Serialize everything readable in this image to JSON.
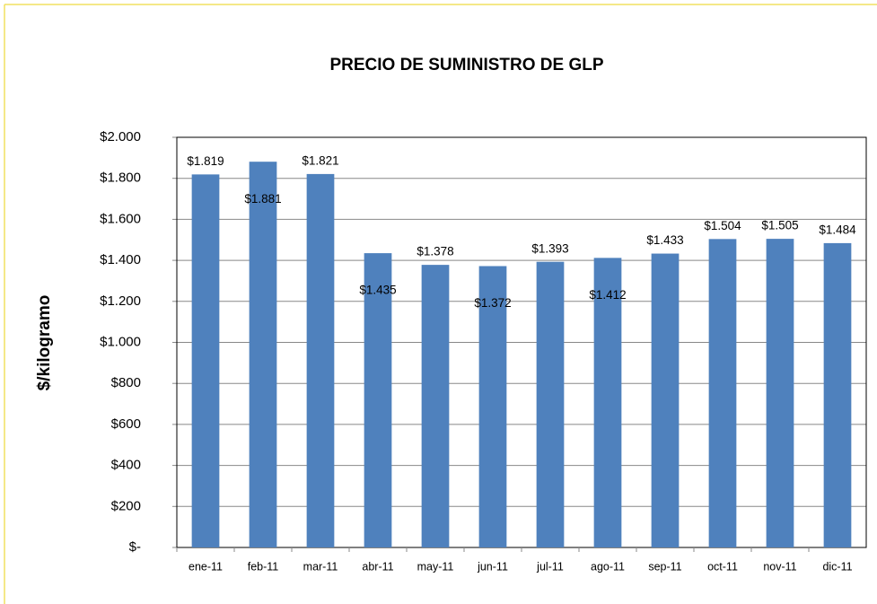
{
  "chart_data": {
    "type": "bar",
    "title": "PRECIO DE SUMINISTRO DE GLP",
    "y_label": "$/kilogramo",
    "categories": [
      "ene-11",
      "feb-11",
      "mar-11",
      "abr-11",
      "may-11",
      "jun-11",
      "jul-11",
      "ago-11",
      "sep-11",
      "oct-11",
      "nov-11",
      "dic-11"
    ],
    "values": [
      1819,
      1881,
      1821,
      1435,
      1378,
      1372,
      1393,
      1412,
      1433,
      1504,
      1505,
      1484
    ],
    "value_labels": [
      "$1.819",
      "$1.881",
      "$1.821",
      "$1.435",
      "$1.378",
      "$1.372",
      "$1.393",
      "$1.412",
      "$1.433",
      "$1.504",
      "$1.505",
      "$1.484"
    ],
    "color": "#4f81bd",
    "ylim": [
      0,
      2000
    ],
    "yticks": [
      {
        "value": 0,
        "label": "$-"
      },
      {
        "value": 200,
        "label": "$200"
      },
      {
        "value": 400,
        "label": "$400"
      },
      {
        "value": 600,
        "label": "$600"
      },
      {
        "value": 800,
        "label": "$800"
      },
      {
        "value": 1000,
        "label": "$1.000"
      },
      {
        "value": 1200,
        "label": "$1.200"
      },
      {
        "value": 1400,
        "label": "$1.400"
      },
      {
        "value": 1600,
        "label": "$1.600"
      },
      {
        "value": 1800,
        "label": "$1.800"
      },
      {
        "value": 2000,
        "label": "$2.000"
      }
    ],
    "grid": true
  }
}
